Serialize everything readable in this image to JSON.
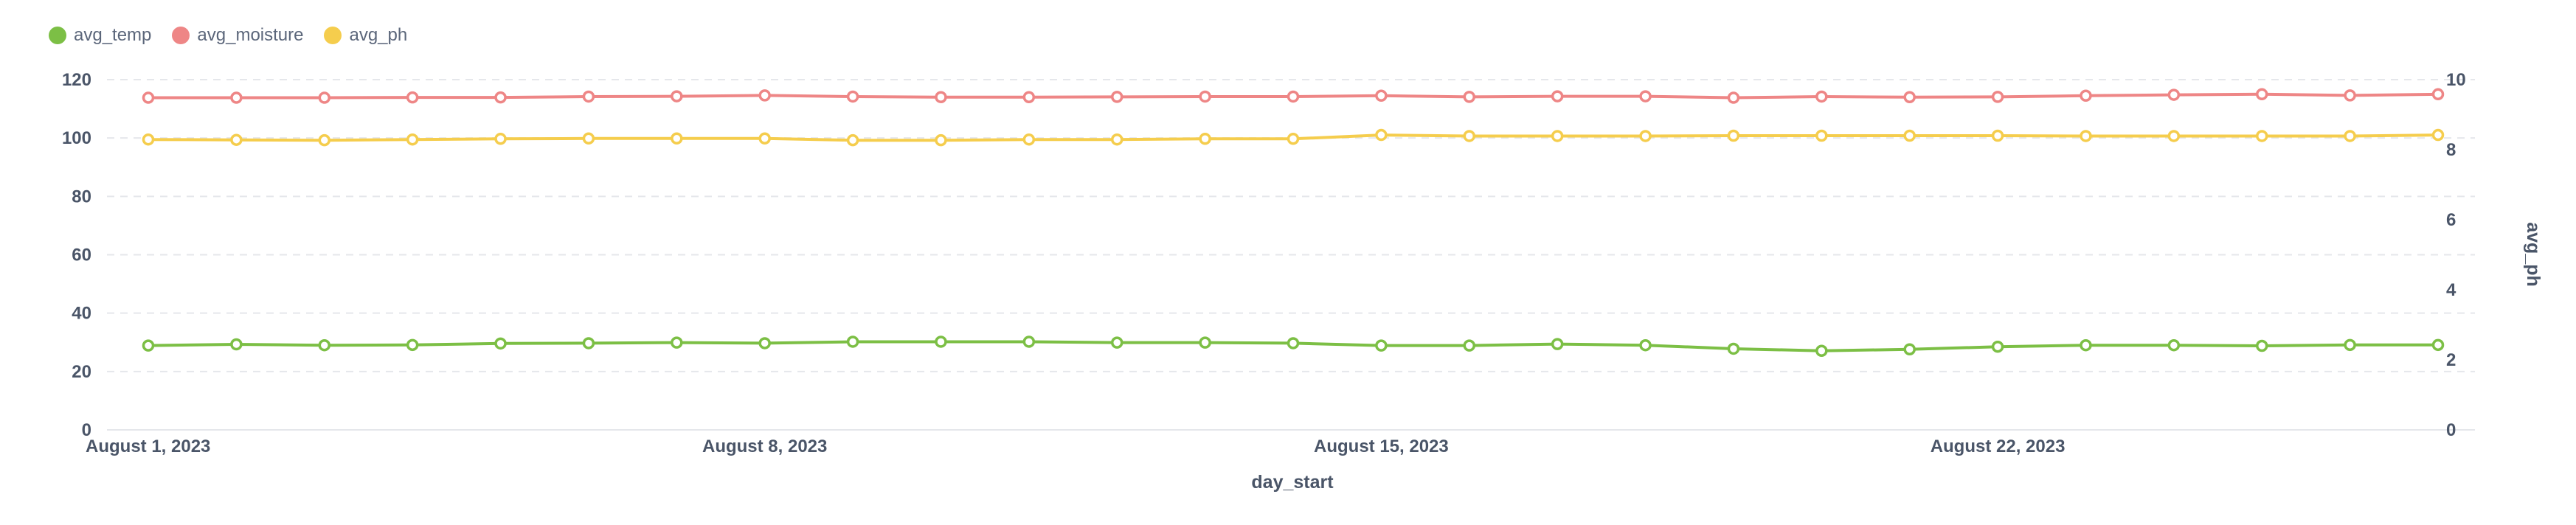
{
  "chart_data": {
    "type": "line",
    "title": "",
    "xlabel": "day_start",
    "ylabel": "",
    "y2label": "avg_ph",
    "ylim": [
      0,
      120
    ],
    "y2lim": [
      0,
      10
    ],
    "yticks": [
      0,
      20,
      40,
      60,
      80,
      100,
      120
    ],
    "y2ticks": [
      0,
      2,
      4,
      6,
      8,
      10
    ],
    "x_tick_labels": [
      {
        "day_index": 0,
        "label": "August 1, 2023"
      },
      {
        "day_index": 7,
        "label": "August 8, 2023"
      },
      {
        "day_index": 14,
        "label": "August 15, 2023"
      },
      {
        "day_index": 21,
        "label": "August 22, 2023"
      }
    ],
    "x": [
      "2023-08-01",
      "2023-08-02",
      "2023-08-03",
      "2023-08-04",
      "2023-08-05",
      "2023-08-06",
      "2023-08-07",
      "2023-08-08",
      "2023-08-09",
      "2023-08-10",
      "2023-08-11",
      "2023-08-12",
      "2023-08-13",
      "2023-08-14",
      "2023-08-15",
      "2023-08-16",
      "2023-08-17",
      "2023-08-18",
      "2023-08-19",
      "2023-08-20",
      "2023-08-21",
      "2023-08-22",
      "2023-08-23",
      "2023-08-24",
      "2023-08-25",
      "2023-08-26",
      "2023-08-27"
    ],
    "series": [
      {
        "name": "avg_temp",
        "axis": "left",
        "color": "#7cbf45",
        "values": [
          28.9,
          29.3,
          29.0,
          29.1,
          29.6,
          29.7,
          29.9,
          29.7,
          30.2,
          30.2,
          30.2,
          29.9,
          29.9,
          29.7,
          28.9,
          28.9,
          29.4,
          29.0,
          27.8,
          27.1,
          27.6,
          28.5,
          29.0,
          29.0,
          28.8,
          29.1,
          29.1
        ]
      },
      {
        "name": "avg_moisture",
        "axis": "left",
        "color": "#ee8686",
        "values": [
          113.8,
          113.8,
          113.8,
          113.9,
          113.9,
          114.2,
          114.3,
          114.6,
          114.2,
          114.0,
          114.0,
          114.1,
          114.2,
          114.2,
          114.5,
          114.1,
          114.3,
          114.3,
          113.8,
          114.2,
          114.0,
          114.1,
          114.5,
          114.8,
          115.0,
          114.6,
          115.0
        ]
      },
      {
        "name": "avg_ph",
        "axis": "right",
        "color": "#f5cd4d",
        "values": [
          8.29,
          8.28,
          8.27,
          8.29,
          8.31,
          8.32,
          8.32,
          8.32,
          8.27,
          8.27,
          8.29,
          8.29,
          8.31,
          8.31,
          8.42,
          8.39,
          8.39,
          8.39,
          8.4,
          8.4,
          8.4,
          8.4,
          8.39,
          8.39,
          8.39,
          8.39,
          8.42
        ]
      }
    ],
    "legend_position": "top-left",
    "grid": true
  }
}
